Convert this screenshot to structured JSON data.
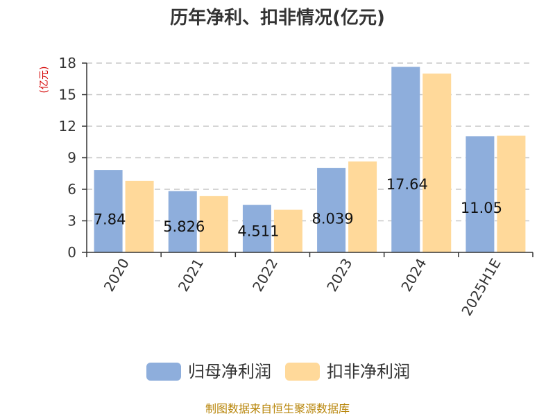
{
  "chart_data": {
    "type": "bar",
    "title": "历年净利、扣非情况(亿元)",
    "ylabel": "(亿元)",
    "xlabel": "",
    "categories": [
      "2020",
      "2021",
      "2022",
      "2023",
      "2024",
      "2025H1E"
    ],
    "ylim": [
      0,
      18
    ],
    "yticks": [
      0,
      3,
      6,
      9,
      12,
      15,
      18
    ],
    "grid": true,
    "legend_position": "bottom",
    "series": [
      {
        "name": "归母净利润",
        "color": "#8eaedc",
        "values": [
          7.84,
          5.826,
          4.511,
          8.039,
          17.64,
          11.05
        ]
      },
      {
        "name": "扣非净利润",
        "color": "#ffd99a",
        "values": [
          6.8,
          5.35,
          4.05,
          8.65,
          17.0,
          11.1
        ]
      }
    ],
    "data_labels": [
      "7.84",
      "5.826",
      "4.511",
      "8.039",
      "17.64",
      "11.05"
    ],
    "source": "制图数据来自恒生聚源数据库"
  }
}
